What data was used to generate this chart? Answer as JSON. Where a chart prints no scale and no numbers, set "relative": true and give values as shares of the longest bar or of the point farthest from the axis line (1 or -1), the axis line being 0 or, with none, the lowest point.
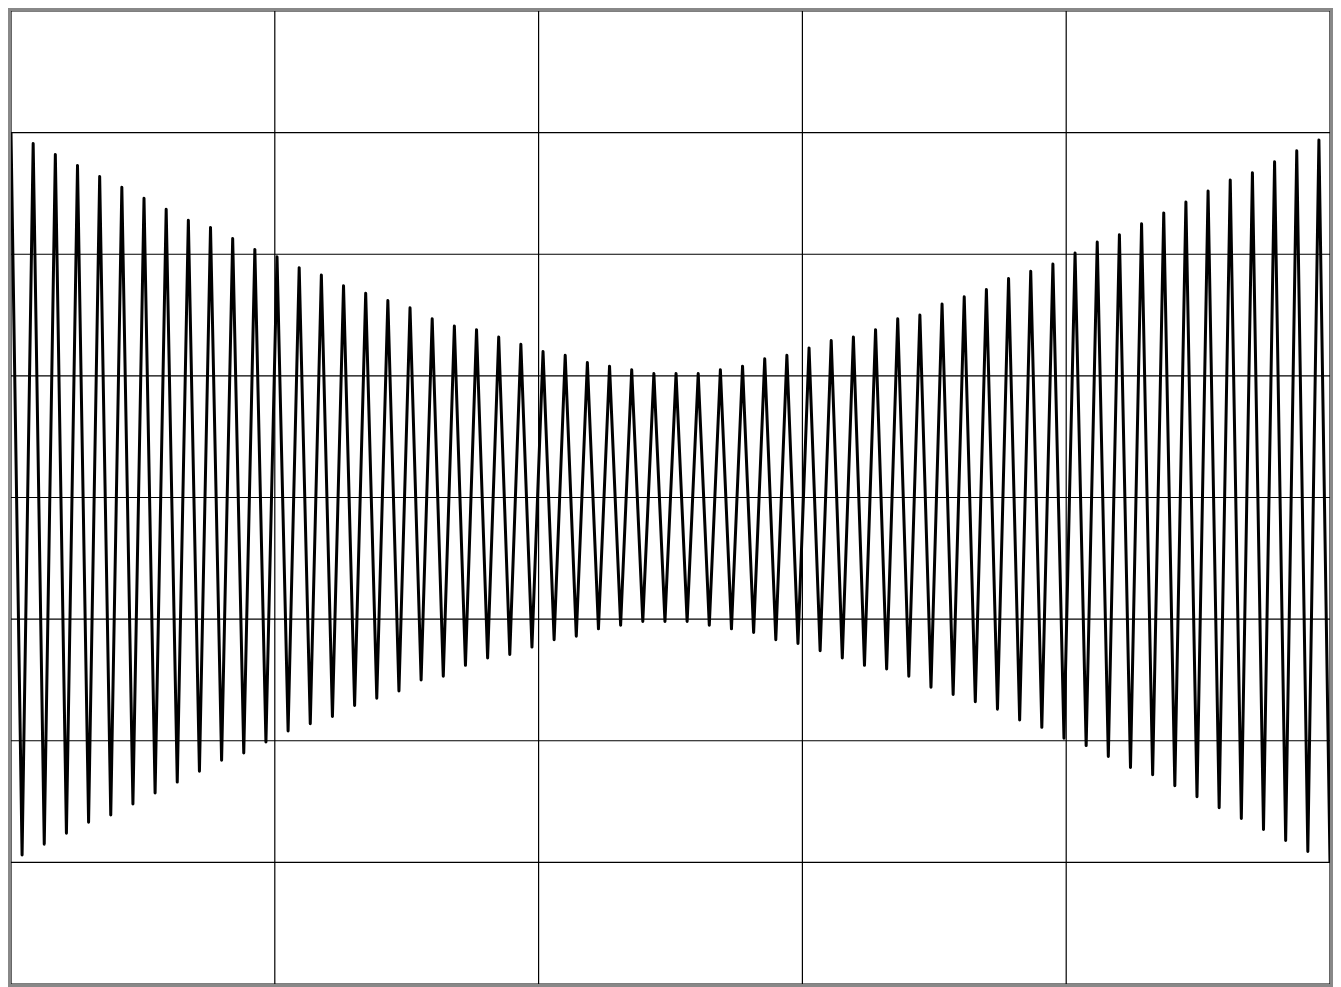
{
  "chart_data": {
    "type": "line",
    "relative": true,
    "grid": true,
    "marker": "none",
    "line_style": "solid",
    "categories": [
      null,
      null,
      null,
      null,
      null,
      null,
      null,
      null,
      null,
      null,
      null,
      null,
      null,
      null,
      null,
      null,
      null,
      null,
      null,
      null,
      null,
      null,
      null,
      null,
      null,
      null,
      null,
      null,
      null,
      null,
      null,
      null,
      null,
      null,
      null,
      null,
      null,
      null,
      null,
      null,
      null,
      null,
      null,
      null,
      null,
      null,
      null,
      null,
      null,
      null,
      null,
      null,
      null,
      null,
      null,
      null,
      null,
      null,
      null,
      null,
      null,
      null,
      null,
      null,
      null,
      null,
      null,
      null,
      null,
      null,
      null,
      null,
      null,
      null,
      null,
      null,
      null,
      null,
      null,
      null,
      null,
      null,
      null,
      null,
      null,
      null,
      null,
      null,
      null,
      null,
      null,
      null,
      null,
      null,
      null,
      null,
      null,
      null,
      null,
      null,
      null,
      null,
      null,
      null,
      null,
      null,
      null,
      null,
      null,
      null,
      null,
      null,
      null,
      null,
      null,
      null,
      null,
      null,
      null,
      null
    ],
    "series": [
      {
        "color": "#000000",
        "values": [
          1,
          -0.98,
          0.97,
          -0.95,
          0.94,
          -0.92,
          0.91,
          -0.89,
          0.88,
          -0.87,
          0.85,
          -0.84,
          0.82,
          -0.81,
          0.79,
          -0.78,
          0.76,
          -0.75,
          0.74,
          -0.72,
          0.71,
          -0.7,
          0.68,
          -0.67,
          0.66,
          -0.64,
          0.63,
          -0.62,
          0.61,
          -0.6,
          0.58,
          -0.57,
          0.56,
          -0.55,
          0.54,
          -0.53,
          0.52,
          -0.5,
          0.49,
          -0.49,
          0.47,
          -0.46,
          0.46,
          -0.44,
          0.44,
          -0.43,
          0.42,
          -0.41,
          0.4,
          -0.39,
          0.39,
          -0.38,
          0.37,
          -0.36,
          0.36,
          -0.35,
          0.35,
          -0.34,
          0.34,
          -0.34,
          0.34,
          -0.34,
          0.34,
          -0.35,
          0.35,
          -0.36,
          0.36,
          -0.37,
          0.38,
          -0.39,
          0.39,
          -0.4,
          0.41,
          -0.42,
          0.43,
          -0.44,
          0.44,
          -0.46,
          0.46,
          -0.47,
          0.49,
          -0.49,
          0.5,
          -0.52,
          0.53,
          -0.54,
          0.55,
          -0.56,
          0.57,
          -0.58,
          0.6,
          -0.61,
          0.62,
          -0.63,
          0.64,
          -0.66,
          0.67,
          -0.68,
          0.7,
          -0.71,
          0.72,
          -0.74,
          0.75,
          -0.76,
          0.78,
          -0.79,
          0.81,
          -0.82,
          0.84,
          -0.85,
          0.87,
          -0.88,
          0.89,
          -0.91,
          0.92,
          -0.94,
          0.95,
          -0.97,
          0.98,
          -1
        ]
      }
    ]
  }
}
